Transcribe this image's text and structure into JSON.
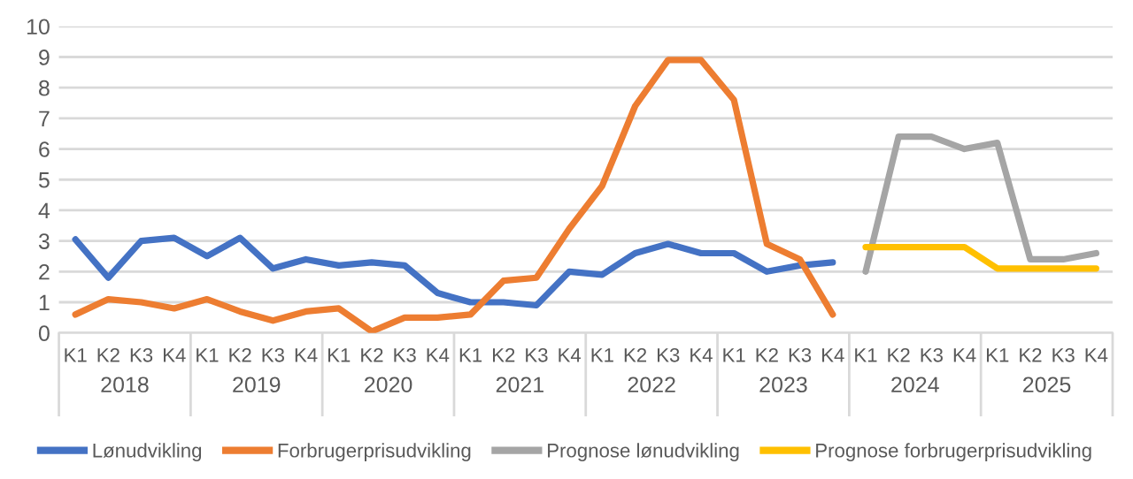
{
  "chart_data": {
    "type": "line",
    "categories": [
      "K1",
      "K2",
      "K3",
      "K4",
      "K1",
      "K2",
      "K3",
      "K4",
      "K1",
      "K2",
      "K3",
      "K4",
      "K1",
      "K2",
      "K3",
      "K4",
      "K1",
      "K2",
      "K3",
      "K4",
      "K1",
      "K2",
      "K3",
      "K4",
      "K1",
      "K2",
      "K3",
      "K4",
      "K1",
      "K2",
      "K3",
      "K4"
    ],
    "series": [
      {
        "name": "Lønudvikling",
        "color": "#4472c4",
        "values": [
          3.05,
          1.8,
          3.0,
          3.1,
          2.5,
          3.1,
          2.1,
          2.4,
          2.2,
          2.3,
          2.2,
          1.3,
          1.0,
          1.0,
          0.9,
          2.0,
          1.9,
          2.6,
          2.9,
          2.6,
          2.6,
          2.0,
          2.2,
          2.3,
          null,
          null,
          null,
          null,
          null,
          null,
          null,
          null
        ]
      },
      {
        "name": "Forbrugerprisudvikling",
        "color": "#ed7d31",
        "values": [
          0.6,
          1.1,
          1.0,
          0.8,
          1.1,
          0.7,
          0.4,
          0.7,
          0.8,
          0.05,
          0.5,
          0.5,
          0.6,
          1.7,
          1.8,
          3.4,
          4.8,
          7.4,
          8.9,
          8.9,
          7.6,
          2.9,
          2.4,
          0.6,
          null,
          null,
          null,
          null,
          null,
          null,
          null,
          null
        ]
      },
      {
        "name": "Prognose lønudvikling",
        "color": "#a5a5a5",
        "values": [
          null,
          null,
          null,
          null,
          null,
          null,
          null,
          null,
          null,
          null,
          null,
          null,
          null,
          null,
          null,
          null,
          null,
          null,
          null,
          null,
          null,
          null,
          null,
          null,
          2.0,
          6.4,
          6.4,
          6.0,
          6.2,
          2.4,
          2.4,
          2.6
        ]
      },
      {
        "name": "Prognose forbrugerprisudvikling",
        "color": "#ffc000",
        "values": [
          null,
          null,
          null,
          null,
          null,
          null,
          null,
          null,
          null,
          null,
          null,
          null,
          null,
          null,
          null,
          null,
          null,
          null,
          null,
          null,
          null,
          null,
          null,
          null,
          2.8,
          2.8,
          2.8,
          2.8,
          2.1,
          2.1,
          2.1,
          2.1
        ]
      }
    ],
    "annotations": [
      "2018",
      "2019",
      "2020",
      "2021",
      "2022",
      "2023",
      "2024",
      "2025"
    ],
    "ylim": [
      0,
      10
    ],
    "yticks": [
      0,
      1,
      2,
      3,
      4,
      5,
      6,
      7,
      8,
      9,
      10
    ],
    "grid": "y",
    "legend": "bottom",
    "marker": "none",
    "line_style": "solid"
  }
}
